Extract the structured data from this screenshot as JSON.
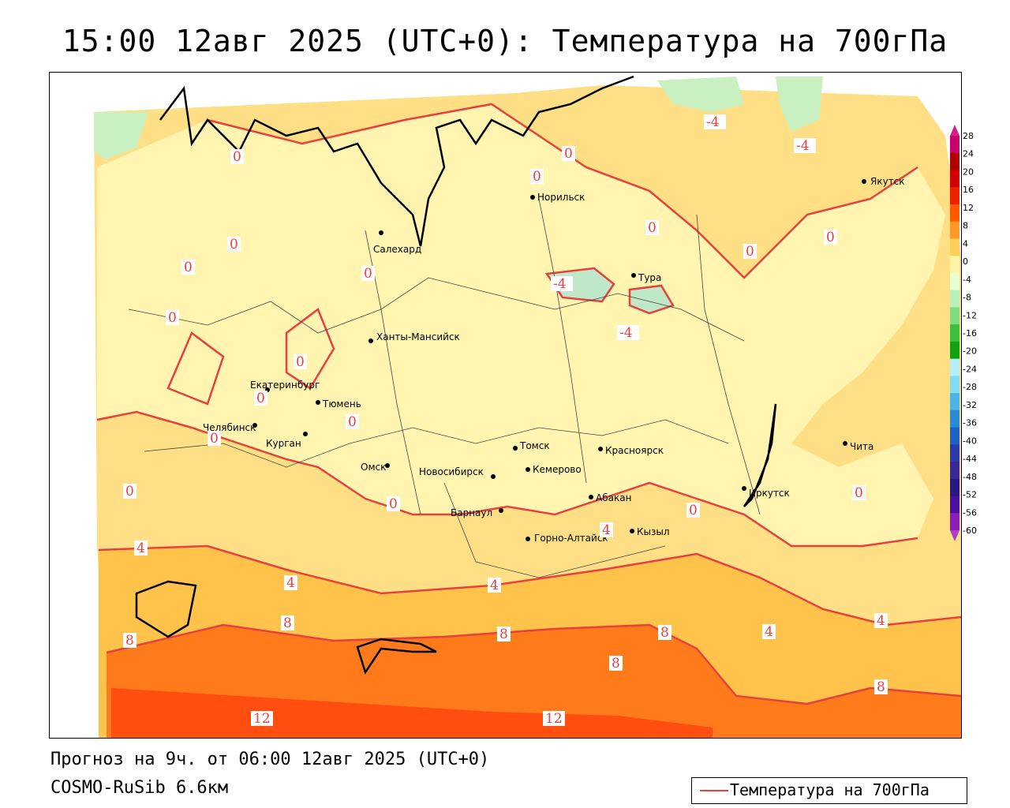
{
  "title": "15:00 12авг 2025 (UTC+0): Температура на 700гПа",
  "forecast_line": "Прогноз на 9ч. от 06:00 12авг 2025 (UTC+0)",
  "model_line": "COSMO-RuSib 6.6км",
  "legend": {
    "label": "Температура на 700гПа",
    "color": "#e8403c"
  },
  "colorbar": {
    "ticks": [
      "28",
      "24",
      "20",
      "16",
      "12",
      "8",
      "4",
      "0",
      "-4",
      "-8",
      "-12",
      "-16",
      "-20",
      "-24",
      "-28",
      "-32",
      "-36",
      "-40",
      "-44",
      "-48",
      "-52",
      "-56",
      "-60"
    ],
    "colors": [
      "#c8006e",
      "#b00000",
      "#d40000",
      "#ee2200",
      "#ff5a00",
      "#ff9a2a",
      "#ffcf5a",
      "#fff4a8",
      "#e8ffd0",
      "#b8f0b8",
      "#7fdc7f",
      "#3cbf3c",
      "#14a014",
      "#b6f0f4",
      "#84dcf0",
      "#4ab4e6",
      "#2a8ad4",
      "#1e60c4",
      "#2b3aa8",
      "#3a2896",
      "#2a1880",
      "#4a10a0",
      "#8a20b8"
    ]
  },
  "cities": [
    {
      "name": "Якутск"
    },
    {
      "name": "Норильск"
    },
    {
      "name": "Салехард"
    },
    {
      "name": "Тура"
    },
    {
      "name": "Ханты-Мансийск"
    },
    {
      "name": "Екатеринбург"
    },
    {
      "name": "Тюмень"
    },
    {
      "name": "Челябинск"
    },
    {
      "name": "Курган"
    },
    {
      "name": "Томск"
    },
    {
      "name": "Красноярск"
    },
    {
      "name": "Омск"
    },
    {
      "name": "Новосибирск"
    },
    {
      "name": "Кемерово"
    },
    {
      "name": "Абакан"
    },
    {
      "name": "Иркутск"
    },
    {
      "name": "Чита"
    },
    {
      "name": "Барнаул"
    },
    {
      "name": "Горно-Алтайск"
    },
    {
      "name": "Кызыл"
    }
  ],
  "isotherm_labels": [
    "-4",
    "-4",
    "0",
    "0",
    "0",
    "0",
    "0",
    "0",
    "0",
    "0",
    "0",
    "0",
    "0",
    "0",
    "0",
    "0",
    "0",
    "0",
    "0",
    "0",
    "-4",
    "-4",
    "4",
    "4",
    "4",
    "4",
    "4",
    "4",
    "8",
    "8",
    "8",
    "8",
    "8",
    "8",
    "12",
    "12"
  ]
}
